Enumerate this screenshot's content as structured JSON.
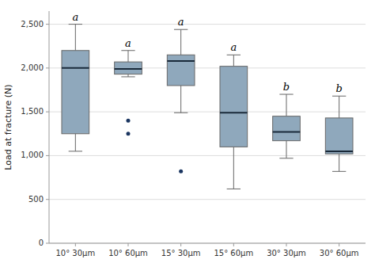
{
  "chart_data": {
    "type": "box",
    "categories": [
      "10° 30μm",
      "10° 60μm",
      "15° 30μm",
      "15° 60μm",
      "30° 30μm",
      "30° 60μm"
    ],
    "boxes": [
      {
        "whislo": 1050,
        "q1": 1250,
        "med": 2000,
        "q3": 2200,
        "whishi": 2500,
        "fliers": []
      },
      {
        "whislo": 1900,
        "q1": 1930,
        "med": 1990,
        "q3": 2070,
        "whishi": 2200,
        "fliers": [
          1400,
          1250
        ]
      },
      {
        "whislo": 1490,
        "q1": 1800,
        "med": 2080,
        "q3": 2150,
        "whishi": 2440,
        "fliers": [
          820
        ]
      },
      {
        "whislo": 620,
        "q1": 1100,
        "med": 1490,
        "q3": 2020,
        "whishi": 2150,
        "fliers": []
      },
      {
        "whislo": 970,
        "q1": 1170,
        "med": 1270,
        "q3": 1450,
        "whishi": 1700,
        "fliers": []
      },
      {
        "whislo": 820,
        "q1": 1020,
        "med": 1050,
        "q3": 1430,
        "whishi": 1680,
        "fliers": []
      }
    ],
    "annotations": [
      "a",
      "a",
      "a",
      "a",
      "b",
      "b"
    ],
    "ylabel": "Load at fracture (N)",
    "ylim": [
      0,
      2650
    ],
    "yticks": [
      0,
      500,
      {
        "value": 1000,
        "label": "1,000"
      },
      {
        "value": 1500,
        "label": "1,500"
      },
      {
        "value": 2000,
        "label": "2,000"
      },
      {
        "value": 2500,
        "label": "2,500"
      }
    ],
    "color": "#8fa8bc",
    "grid": true
  }
}
